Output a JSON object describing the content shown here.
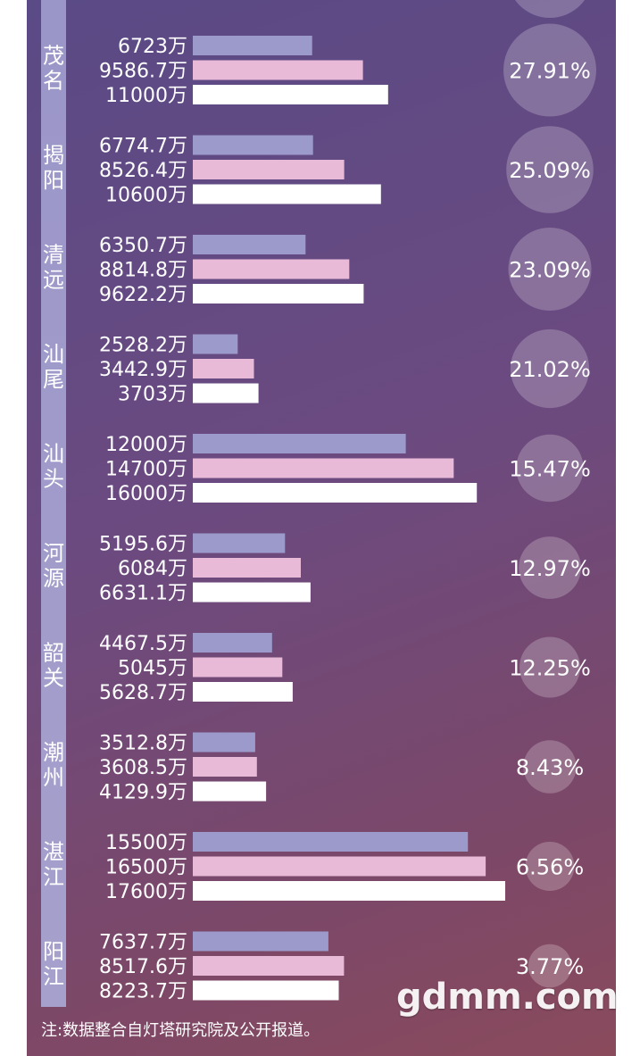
{
  "chart_data": {
    "type": "bar",
    "orientation": "horizontal",
    "unit": "万",
    "categories": [
      "茂名",
      "揭阳",
      "清远",
      "汕尾",
      "汕头",
      "河源",
      "韶关",
      "潮州",
      "湛江",
      "阳江"
    ],
    "series": [
      {
        "values": [
          6723,
          6774.7,
          6350.7,
          2528.2,
          12000,
          5195.6,
          4467.5,
          3512.8,
          15500,
          7637.7
        ],
        "color": "#9b9acb"
      },
      {
        "values": [
          9586.7,
          8526.4,
          8814.8,
          3442.9,
          14700,
          6084,
          5045,
          3608.5,
          16500,
          8517.6
        ],
        "color": "#e9bad8"
      },
      {
        "values": [
          11000,
          10600,
          9622.2,
          3703,
          16000,
          6631.1,
          5628.7,
          4129.9,
          17600,
          8223.7
        ],
        "color": "#ffffff"
      }
    ],
    "value_labels": [
      [
        "6723万",
        "9586.7万",
        "11000万"
      ],
      [
        "6774.7万",
        "8526.4万",
        "10600万"
      ],
      [
        "6350.7万",
        "8814.8万",
        "9622.2万"
      ],
      [
        "2528.2万",
        "3442.9万",
        "3703万"
      ],
      [
        "12000万",
        "14700万",
        "16000万"
      ],
      [
        "5195.6万",
        "6084万",
        "6631.1万"
      ],
      [
        "4467.5万",
        "5045万",
        "5628.7万"
      ],
      [
        "3512.8万",
        "3608.5万",
        "4129.9万"
      ],
      [
        "15500万",
        "16500万",
        "17600万"
      ],
      [
        "7637.7万",
        "8517.6万",
        "8223.7万"
      ]
    ],
    "growth": [
      27.91,
      25.09,
      23.09,
      21.02,
      15.47,
      12.97,
      12.25,
      8.43,
      6.56,
      3.77
    ],
    "growth_labels": [
      "27.91%",
      "25.09%",
      "23.09%",
      "21.02%",
      "15.47%",
      "12.97%",
      "12.25%",
      "8.43%",
      "6.56%",
      "3.77%"
    ],
    "xlim": [
      0,
      18000
    ]
  },
  "footer": {
    "note": "注:数据整合自灯塔研究院及公开报道。",
    "watermark": "gdmm.com"
  }
}
